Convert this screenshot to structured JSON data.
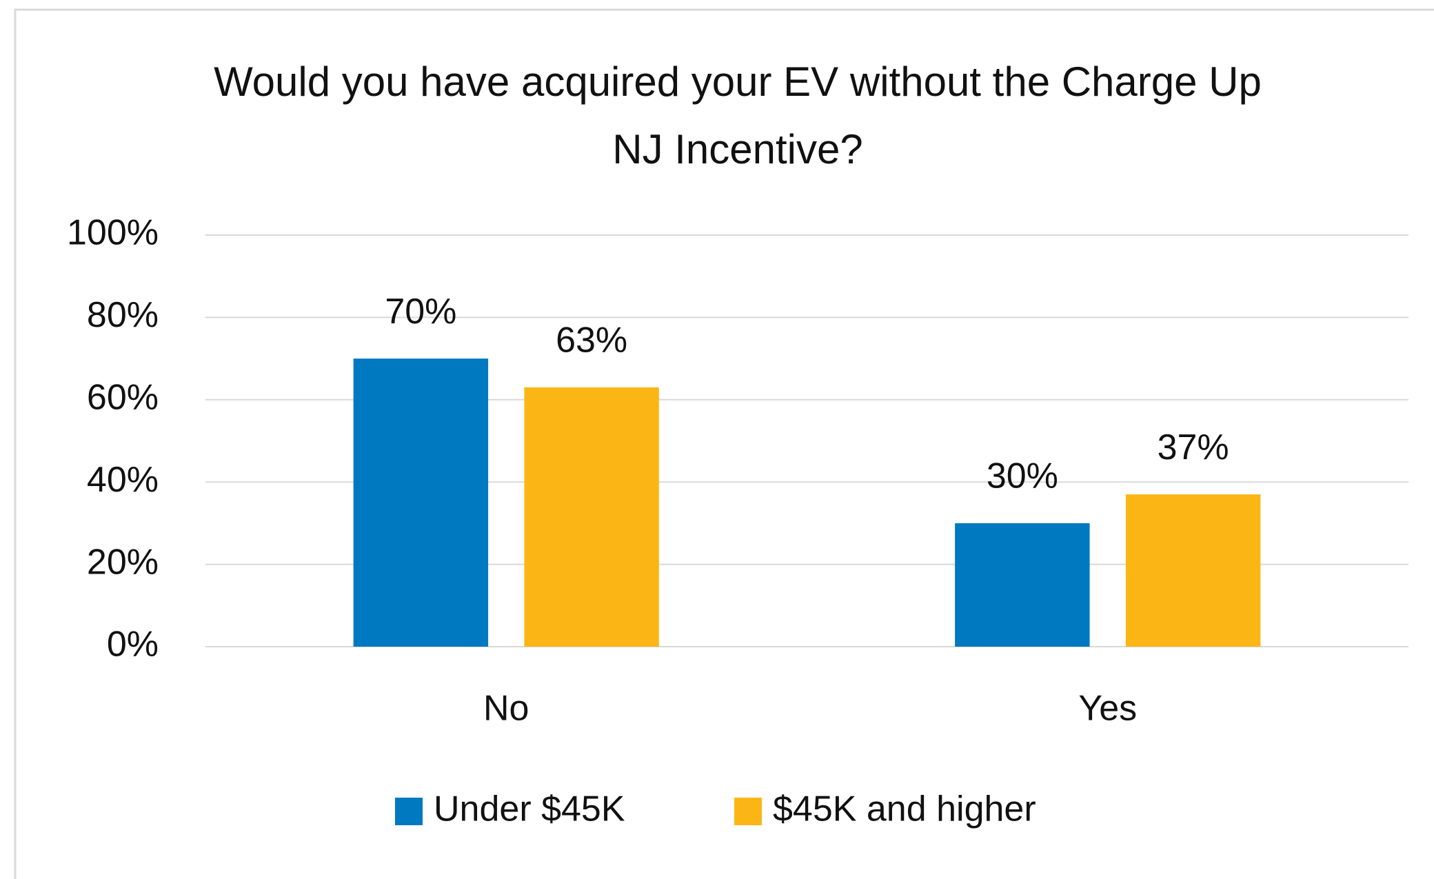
{
  "chart_data": {
    "type": "bar",
    "title": "Would you have acquired your EV without the Charge Up NJ Incentive?",
    "categories": [
      "No",
      "Yes"
    ],
    "series": [
      {
        "name": "Under $45K",
        "color": "#0079c1",
        "values": [
          70,
          30
        ],
        "value_labels": [
          "70%",
          "30%"
        ]
      },
      {
        "name": "$45K and higher",
        "color": "#fbb615",
        "values": [
          63,
          37
        ],
        "value_labels": [
          "63%",
          "37%"
        ]
      }
    ],
    "ylim": [
      0,
      100
    ],
    "yticks": [
      {
        "value": 0,
        "label": "0%"
      },
      {
        "value": 20,
        "label": "20%"
      },
      {
        "value": 40,
        "label": "40%"
      },
      {
        "value": 60,
        "label": "60%"
      },
      {
        "value": 80,
        "label": "80%"
      },
      {
        "value": 100,
        "label": "100%"
      }
    ],
    "grid": true,
    "legend": "bottom"
  }
}
